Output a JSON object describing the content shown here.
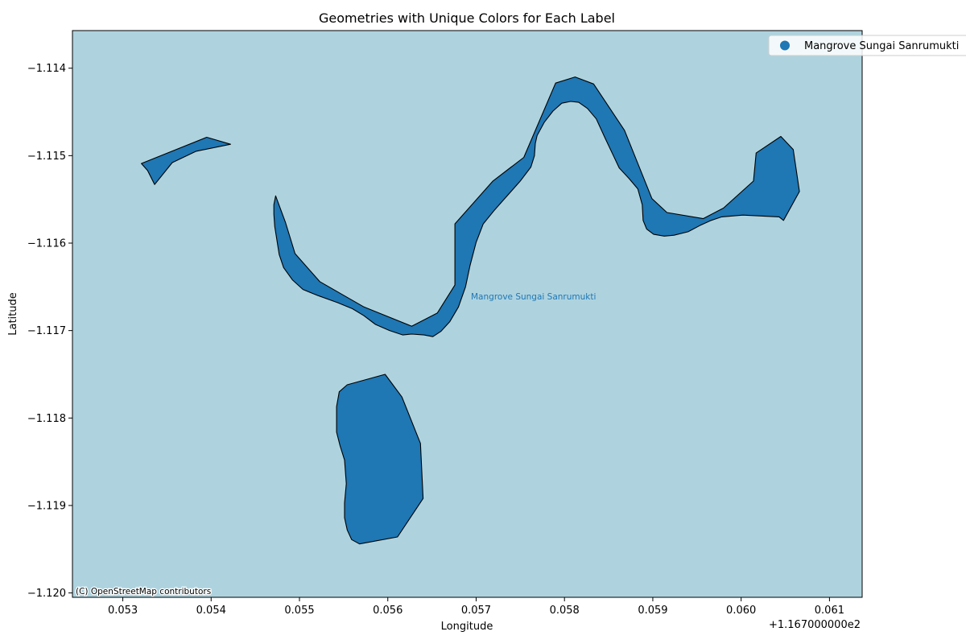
{
  "chart_data": {
    "type": "map",
    "title": "Geometries with Unique Colors for Each Label",
    "xlabel": "Longitude",
    "ylabel": "Latitude",
    "x_offset_label": "+1.167000000e2",
    "xlim": [
      0.05243,
      0.06137
    ],
    "ylim": [
      -1.12005,
      -1.11357
    ],
    "x_ticks": [
      0.053,
      0.054,
      0.055,
      0.056,
      0.057,
      0.058,
      0.059,
      0.06,
      0.061
    ],
    "x_tick_labels": [
      "0.053",
      "0.054",
      "0.055",
      "0.056",
      "0.057",
      "0.058",
      "0.059",
      "0.060",
      "0.061"
    ],
    "y_ticks": [
      -1.114,
      -1.115,
      -1.116,
      -1.117,
      -1.118,
      -1.119,
      -1.12
    ],
    "y_tick_labels": [
      "−1.114",
      "−1.115",
      "−1.116",
      "−1.117",
      "−1.118",
      "−1.119",
      "−1.120"
    ],
    "background_color": "#aed3df",
    "series": [
      {
        "name": "Mangrove Sungai Sanrumukti",
        "color": "#1f77b4",
        "annotation_at": [
          0.05696,
          -1.11664
        ],
        "polygons": [
          [
            [
              0.05321,
              -1.11509
            ],
            [
              0.05395,
              -1.11479
            ],
            [
              0.05422,
              -1.11487
            ],
            [
              0.05383,
              -1.11495
            ],
            [
              0.05356,
              -1.11508
            ],
            [
              0.05336,
              -1.11533
            ],
            [
              0.05328,
              -1.11517
            ]
          ],
          [
            [
              0.05473,
              -1.11546
            ],
            [
              0.05484,
              -1.11576
            ],
            [
              0.05495,
              -1.11612
            ],
            [
              0.05523,
              -1.11644
            ],
            [
              0.05573,
              -1.11673
            ],
            [
              0.05627,
              -1.11695
            ],
            [
              0.05656,
              -1.1168
            ],
            [
              0.05676,
              -1.11648
            ],
            [
              0.05676,
              -1.11578
            ],
            [
              0.05719,
              -1.11529
            ],
            [
              0.05754,
              -1.11502
            ],
            [
              0.0579,
              -1.11417
            ],
            [
              0.05812,
              -1.1141
            ],
            [
              0.05833,
              -1.11418
            ],
            [
              0.05868,
              -1.11471
            ],
            [
              0.05899,
              -1.11549
            ],
            [
              0.05916,
              -1.11565
            ],
            [
              0.05957,
              -1.11572
            ],
            [
              0.0598,
              -1.1156
            ],
            [
              0.06014,
              -1.11529
            ],
            [
              0.06017,
              -1.11497
            ],
            [
              0.06045,
              -1.11478
            ],
            [
              0.06059,
              -1.11493
            ],
            [
              0.06066,
              -1.11541
            ],
            [
              0.06048,
              -1.11574
            ],
            [
              0.06043,
              -1.1157
            ],
            [
              0.06002,
              -1.11568
            ],
            [
              0.05978,
              -1.1157
            ],
            [
              0.05966,
              -1.11574
            ],
            [
              0.05953,
              -1.1158
            ],
            [
              0.0594,
              -1.11587
            ],
            [
              0.05924,
              -1.11591
            ],
            [
              0.05913,
              -1.11592
            ],
            [
              0.05901,
              -1.1159
            ],
            [
              0.05893,
              -1.11584
            ],
            [
              0.05889,
              -1.11574
            ],
            [
              0.05888,
              -1.11556
            ],
            [
              0.05883,
              -1.11538
            ],
            [
              0.05873,
              -1.11526
            ],
            [
              0.05862,
              -1.11514
            ],
            [
              0.05846,
              -1.1148
            ],
            [
              0.05836,
              -1.11458
            ],
            [
              0.05826,
              -1.11446
            ],
            [
              0.05816,
              -1.11439
            ],
            [
              0.05807,
              -1.11438
            ],
            [
              0.05797,
              -1.1144
            ],
            [
              0.05787,
              -1.11449
            ],
            [
              0.05777,
              -1.11462
            ],
            [
              0.05769,
              -1.11477
            ],
            [
              0.05767,
              -1.11486
            ],
            [
              0.05766,
              -1.115
            ],
            [
              0.05762,
              -1.11513
            ],
            [
              0.0575,
              -1.11529
            ],
            [
              0.05721,
              -1.11562
            ],
            [
              0.05708,
              -1.11578
            ],
            [
              0.057,
              -1.11599
            ],
            [
              0.05693,
              -1.11626
            ],
            [
              0.05688,
              -1.1165
            ],
            [
              0.0568,
              -1.11673
            ],
            [
              0.0567,
              -1.1169
            ],
            [
              0.0566,
              -1.11701
            ],
            [
              0.05651,
              -1.11707
            ],
            [
              0.05641,
              -1.11705
            ],
            [
              0.05627,
              -1.11704
            ],
            [
              0.05617,
              -1.11705
            ],
            [
              0.05602,
              -1.117
            ],
            [
              0.05586,
              -1.11693
            ],
            [
              0.05573,
              -1.11683
            ],
            [
              0.0556,
              -1.11675
            ],
            [
              0.05543,
              -1.11668
            ],
            [
              0.05521,
              -1.1166
            ],
            [
              0.05504,
              -1.11653
            ],
            [
              0.05492,
              -1.11642
            ],
            [
              0.05482,
              -1.11628
            ],
            [
              0.05477,
              -1.11613
            ],
            [
              0.05472,
              -1.11581
            ],
            [
              0.05471,
              -1.11567
            ],
            [
              0.05471,
              -1.11556
            ]
          ],
          [
            [
              0.05597,
              -1.1175
            ],
            [
              0.05616,
              -1.11776
            ],
            [
              0.05637,
              -1.11829
            ],
            [
              0.0564,
              -1.11892
            ],
            [
              0.05611,
              -1.11936
            ],
            [
              0.05568,
              -1.11944
            ],
            [
              0.05559,
              -1.11939
            ],
            [
              0.05554,
              -1.11928
            ],
            [
              0.05551,
              -1.11914
            ],
            [
              0.05551,
              -1.11897
            ],
            [
              0.05553,
              -1.11875
            ],
            [
              0.05551,
              -1.11848
            ],
            [
              0.05546,
              -1.11832
            ],
            [
              0.05542,
              -1.11816
            ],
            [
              0.05542,
              -1.11787
            ],
            [
              0.05545,
              -1.1177
            ],
            [
              0.05554,
              -1.11762
            ]
          ]
        ]
      }
    ],
    "legend": {
      "placement": "top-right",
      "entries": [
        {
          "label": "Mangrove Sungai Sanrumukti",
          "color": "#1f77b4"
        }
      ]
    },
    "attribution": "(C) OpenStreetMap contributors"
  }
}
